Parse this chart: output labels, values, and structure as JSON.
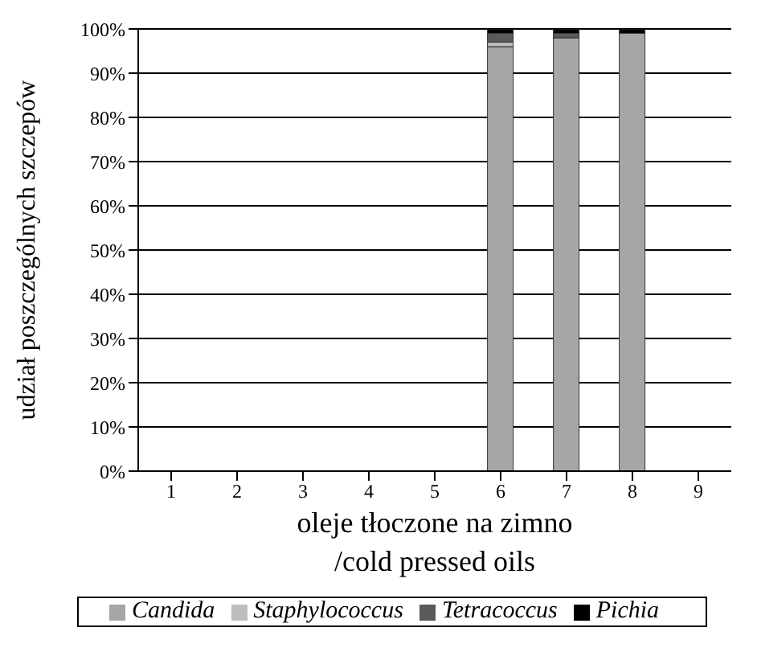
{
  "chart_data": {
    "type": "bar",
    "stacked": true,
    "xlabel": "oleje tłoczone na zimno\n/cold pressed oils",
    "ylabel": "udział poszczególnych szczepów",
    "categories": [
      "1",
      "2",
      "3",
      "4",
      "5",
      "6",
      "7",
      "8",
      "9"
    ],
    "series": [
      {
        "name": "Candida",
        "color": "#a6a6a8",
        "values": [
          0,
          0,
          0,
          0,
          0,
          96,
          98,
          99,
          0
        ]
      },
      {
        "name": "Staphylococcus",
        "color": "#bdbdbf",
        "values": [
          0,
          0,
          0,
          0,
          0,
          1,
          0,
          0,
          0
        ]
      },
      {
        "name": "Tetracoccus",
        "color": "#5a5a5a",
        "values": [
          0,
          0,
          0,
          0,
          0,
          2,
          1,
          0,
          0
        ]
      },
      {
        "name": "Pichia",
        "color": "#000000",
        "values": [
          0,
          0,
          0,
          0,
          0,
          1,
          1,
          1,
          0
        ]
      }
    ],
    "ylim": [
      0,
      100
    ],
    "yticks": [
      {
        "value": 0,
        "label": "0%"
      },
      {
        "value": 10,
        "label": "10%"
      },
      {
        "value": 20,
        "label": "20%"
      },
      {
        "value": 30,
        "label": "30%"
      },
      {
        "value": 40,
        "label": "40%"
      },
      {
        "value": 50,
        "label": "50%"
      },
      {
        "value": 60,
        "label": "60%"
      },
      {
        "value": 70,
        "label": "70%"
      },
      {
        "value": 80,
        "label": "80%"
      },
      {
        "value": 90,
        "label": "90%"
      },
      {
        "value": 100,
        "label": "100%"
      }
    ],
    "grid": "y",
    "legend": "bottom"
  }
}
